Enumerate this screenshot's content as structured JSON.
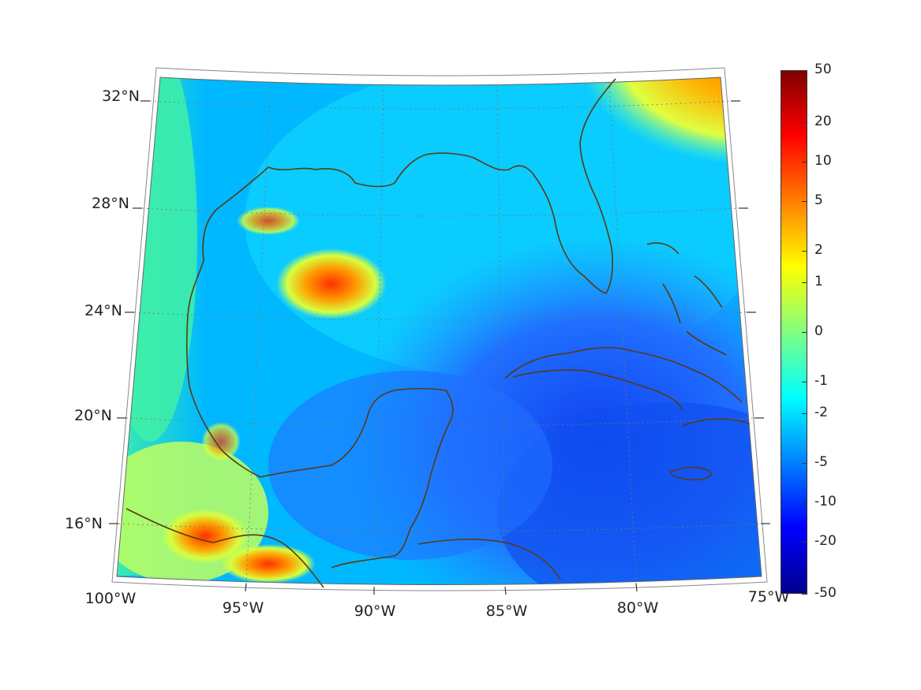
{
  "map": {
    "projection": "conic",
    "lon_range": [
      -100,
      -75
    ],
    "lat_range": [
      14,
      33
    ],
    "lat_labels": [
      "32°N",
      "28°N",
      "24°N",
      "20°N",
      "16°N"
    ],
    "lon_labels": [
      "100°W",
      "95°W",
      "90°W",
      "85°W",
      "80°W",
      "75°W"
    ],
    "coastline_color": "#5a3a10",
    "graticule": "dotted"
  },
  "colorbar": {
    "tick_labels": [
      "50",
      "20",
      "10",
      "5",
      "2",
      "1",
      "0",
      "-1",
      "-2",
      "-5",
      "-10",
      "-20",
      "-50"
    ],
    "colors": [
      "#7f0000",
      "#ff0000",
      "#ff8000",
      "#ffff00",
      "#80ff80",
      "#00ffff",
      "#0080ff",
      "#0000ff",
      "#00008f"
    ],
    "scale": "symmetric-log"
  }
}
